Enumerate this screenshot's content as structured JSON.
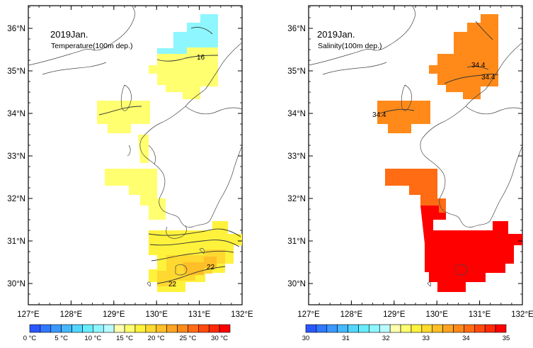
{
  "lon_labels": [
    "127°E",
    "128°E",
    "129°E",
    "130°E",
    "131°E",
    "132°E"
  ],
  "lat_labels": [
    "36°N",
    "35°N",
    "34°N",
    "33°N",
    "32°N",
    "31°N",
    "30°N"
  ],
  "temperature_map": {
    "title": "2019Jan.",
    "subtitle": "Temperature(100m dep.)",
    "contour_labels": [
      "16",
      "22",
      "22"
    ],
    "colorbar_labels": [
      "0 °C",
      "5 °C",
      "10 °C",
      "15 °C",
      "20 °C",
      "25 °C",
      "30 °C"
    ],
    "colorbar_colors": [
      "#2b57ff",
      "#2f78ff",
      "#3b98ff",
      "#45b8ff",
      "#52d6ff",
      "#66ecff",
      "#8ef6ff",
      "#b8fbff",
      "#ffffb0",
      "#ffff70",
      "#fff23c",
      "#ffd830",
      "#ffbf28",
      "#ffa420",
      "#ff8a1a",
      "#ff6c14",
      "#ff4a0e",
      "#ff2a08",
      "#ff0000"
    ]
  },
  "salinity_map": {
    "title": "2019Jan.",
    "subtitle": "Salinity(100m dep.)",
    "contour_labels": [
      "34.4",
      "34.4",
      "34.4"
    ],
    "colorbar_labels": [
      "30",
      "31",
      "32",
      "33",
      "34",
      "35"
    ],
    "colorbar_colors": [
      "#2b57ff",
      "#2f78ff",
      "#3b98ff",
      "#45b8ff",
      "#52d6ff",
      "#66ecff",
      "#8ef6ff",
      "#b8fbff",
      "#ffffb0",
      "#ffff70",
      "#fff23c",
      "#ffd830",
      "#ffbf28",
      "#ffa420",
      "#ff8a1a",
      "#ff6c14",
      "#ff4a0e",
      "#ff2a08",
      "#ff0000"
    ]
  }
}
